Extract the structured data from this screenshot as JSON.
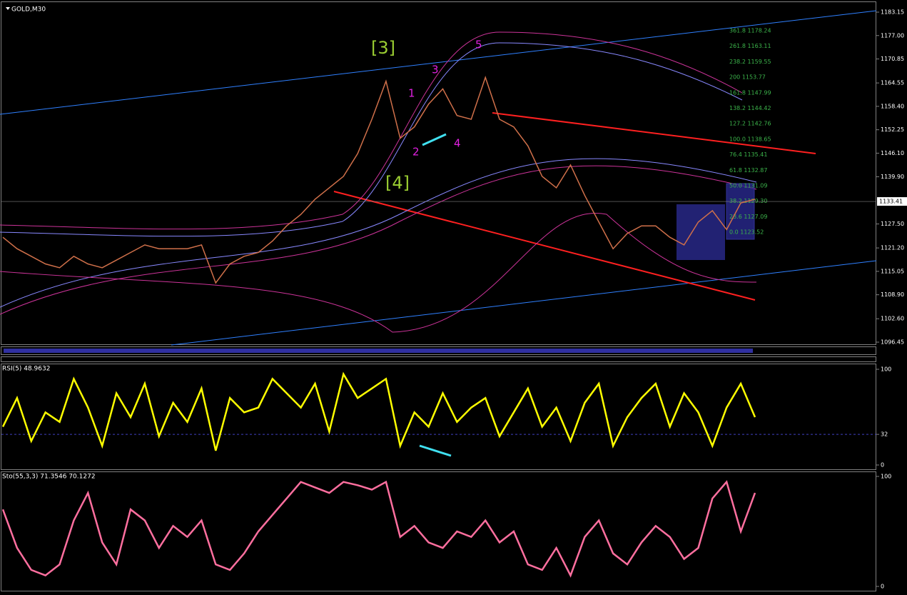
{
  "chart_data": [
    {
      "type": "line",
      "title": "GOLD,M30",
      "color": "#d0704a",
      "values": [
        1124,
        1121,
        1119,
        1117,
        1116,
        1119,
        1117,
        1116,
        1118,
        1120,
        1122,
        1121,
        1121,
        1121,
        1122,
        1112,
        1117,
        1119,
        1120,
        1123,
        1127,
        1130,
        1134,
        1137,
        1140,
        1146,
        1155,
        1165,
        1150,
        1153,
        1159,
        1163,
        1156,
        1155,
        1166,
        1155,
        1153,
        1148,
        1140,
        1137,
        1143,
        1135,
        1128,
        1121,
        1125,
        1127,
        1127,
        1124,
        1122,
        1128,
        1131,
        1126,
        1133,
        1134
      ],
      "ylim": [
        1096.45,
        1183.15
      ],
      "yticks": [
        1096.45,
        {
          "value": 1102.6,
          "label": "1102.60"
        },
        {
          "value": 1108.9,
          "label": "1108.90"
        },
        1115.05,
        {
          "value": 1121.2,
          "label": "1121.20"
        },
        {
          "value": 1127.5,
          "label": "1127.50"
        },
        {
          "value": 1139.9,
          "label": "1139.90"
        },
        {
          "value": 1146.1,
          "label": "1146.10"
        },
        1152.25,
        {
          "value": 1158.4,
          "label": "1158.40"
        },
        1164.55,
        1170.85,
        {
          "value": 1177,
          "label": "1177.00"
        },
        1183.15
      ],
      "current_price": 1133.41,
      "wave_labels": [
        "[3]",
        "[4]",
        "1",
        "2",
        "3",
        "4",
        "5"
      ],
      "fib_labels": [
        "361.8 1178.24",
        "261.8 1163.11",
        "238.2 1159.55",
        "200 1153.77",
        "161.8 1147.99",
        "138.2 1144.42",
        "127.2 1142.76",
        "100.0 1138.65",
        "76.4 1135.41",
        "61.8 1132.87",
        "50.0 1131.09",
        "38.2 1129.30",
        "23.6 1127.09",
        "0.0 1123.52"
      ]
    },
    {
      "type": "line",
      "title": "RSI(5) 48.9632",
      "color": "#ffff00",
      "values": [
        40,
        70,
        25,
        55,
        45,
        90,
        60,
        20,
        75,
        50,
        85,
        30,
        65,
        45,
        80,
        15,
        70,
        55,
        60,
        90,
        75,
        60,
        85,
        35,
        95,
        70,
        80,
        90,
        20,
        55,
        40,
        75,
        45,
        60,
        70,
        30,
        55,
        80,
        40,
        60,
        25,
        65,
        85,
        20,
        50,
        70,
        85,
        40,
        75,
        55,
        20,
        60,
        85,
        50
      ],
      "ylim": [
        0,
        100
      ],
      "yticks": [
        0,
        32,
        100
      ]
    },
    {
      "type": "line",
      "title": "Sto(55,3,3) 71.3546 70.1272",
      "color": "#ff6f9f",
      "values": [
        70,
        35,
        15,
        10,
        20,
        60,
        85,
        40,
        20,
        70,
        60,
        35,
        55,
        45,
        60,
        20,
        15,
        30,
        50,
        65,
        80,
        95,
        90,
        85,
        95,
        92,
        88,
        95,
        45,
        55,
        40,
        35,
        50,
        45,
        60,
        40,
        50,
        20,
        15,
        35,
        10,
        45,
        60,
        30,
        20,
        40,
        55,
        45,
        25,
        35,
        80,
        95,
        50,
        85
      ],
      "ylim": [
        0,
        100
      ],
      "yticks": [
        0,
        100
      ]
    }
  ]
}
